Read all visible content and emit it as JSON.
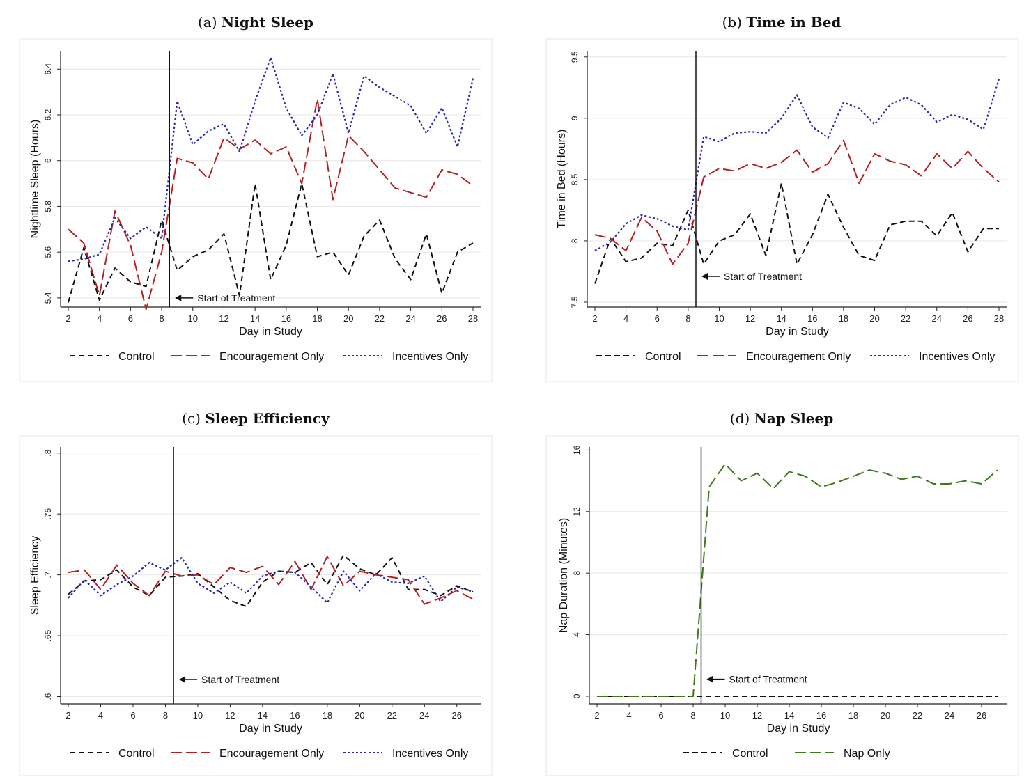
{
  "colors": {
    "control": "#111111",
    "encouragement": "#b22222",
    "incentives": "#2a2aa8",
    "nap": "#3d7a1e",
    "grid": "#e6e6e6",
    "frame": "#eeeeee"
  },
  "chart_data": [
    {
      "id": "a",
      "type": "line",
      "title_prefix": "(a)",
      "title": "Night Sleep",
      "xlabel": "Day in Study",
      "ylabel": "Nighttime Sleep (Hours)",
      "xlim": [
        2,
        28
      ],
      "ylim": [
        5.36,
        6.48
      ],
      "xticks": [
        2,
        4,
        6,
        8,
        10,
        12,
        14,
        16,
        18,
        20,
        22,
        24,
        26,
        28
      ],
      "yticks": [
        5.4,
        5.6,
        5.8,
        6,
        6.2,
        6.4
      ],
      "ytick_labels": [
        "5.4",
        "5.6",
        "5.8",
        "6",
        "6.2",
        "6.4"
      ],
      "treatment_x": 8.5,
      "annotation": "Start of Treatment",
      "annotation_y": 5.4,
      "x": [
        2,
        3,
        4,
        5,
        6,
        7,
        8,
        9,
        10,
        11,
        12,
        13,
        14,
        15,
        16,
        17,
        18,
        19,
        20,
        21,
        22,
        23,
        24,
        25,
        26,
        27,
        28
      ],
      "series": [
        {
          "name": "Control",
          "key": "control",
          "dash": "8,5",
          "values": [
            5.38,
            5.62,
            5.39,
            5.53,
            5.47,
            5.45,
            5.74,
            5.52,
            5.58,
            5.61,
            5.68,
            5.41,
            5.9,
            5.48,
            5.63,
            5.9,
            5.58,
            5.6,
            5.5,
            5.67,
            5.74,
            5.57,
            5.48,
            5.68,
            5.42,
            5.6,
            5.64
          ]
        },
        {
          "name": "Encouragement Only",
          "key": "encouragement",
          "dash": "16,6",
          "values": [
            5.7,
            5.64,
            5.41,
            5.78,
            5.63,
            5.35,
            5.6,
            6.01,
            5.99,
            5.92,
            6.1,
            6.05,
            6.09,
            6.03,
            6.06,
            5.9,
            6.27,
            5.83,
            6.11,
            6.04,
            5.96,
            5.88,
            5.86,
            5.84,
            5.96,
            5.94,
            5.89
          ]
        },
        {
          "name": "Incentives Only",
          "key": "incentives",
          "dash": "3,3",
          "values": [
            5.56,
            5.57,
            5.59,
            5.75,
            5.66,
            5.71,
            5.66,
            6.26,
            6.07,
            6.13,
            6.16,
            6.04,
            6.26,
            6.45,
            6.23,
            6.11,
            6.2,
            6.38,
            6.12,
            6.37,
            6.32,
            6.28,
            6.24,
            6.12,
            6.23,
            6.06,
            6.36
          ]
        }
      ],
      "legend": [
        "Control",
        "Encouragement Only",
        "Incentives Only"
      ]
    },
    {
      "id": "b",
      "type": "line",
      "title_prefix": "(b)",
      "title": "Time in Bed",
      "xlabel": "Day in Study",
      "ylabel": "Time in Bed (Hours)",
      "xlim": [
        2,
        28
      ],
      "ylim": [
        7.46,
        9.55
      ],
      "xticks": [
        2,
        4,
        6,
        8,
        10,
        12,
        14,
        16,
        18,
        20,
        22,
        24,
        26,
        28
      ],
      "yticks": [
        7.5,
        8,
        8.5,
        9,
        9.5
      ],
      "ytick_labels": [
        "7.5",
        "8",
        "8.5",
        "9",
        "9.5"
      ],
      "treatment_x": 8.5,
      "annotation": "Start of Treatment",
      "annotation_y": 7.71,
      "x": [
        2,
        3,
        4,
        5,
        6,
        7,
        8,
        9,
        10,
        11,
        12,
        13,
        14,
        15,
        16,
        17,
        18,
        19,
        20,
        21,
        22,
        23,
        24,
        25,
        26,
        27,
        28
      ],
      "series": [
        {
          "name": "Control",
          "key": "control",
          "dash": "8,5",
          "values": [
            7.65,
            8.02,
            7.83,
            7.86,
            7.98,
            7.96,
            8.25,
            7.81,
            8.0,
            8.05,
            8.22,
            7.88,
            8.47,
            7.81,
            8.05,
            8.38,
            8.11,
            7.88,
            7.84,
            8.13,
            8.16,
            8.16,
            8.04,
            8.23,
            7.91,
            8.1,
            8.1
          ]
        },
        {
          "name": "Encouragement Only",
          "key": "encouragement",
          "dash": "16,6",
          "values": [
            8.05,
            8.02,
            7.92,
            8.19,
            8.08,
            7.81,
            7.98,
            8.52,
            8.59,
            8.57,
            8.63,
            8.59,
            8.64,
            8.74,
            8.56,
            8.63,
            8.82,
            8.47,
            8.71,
            8.65,
            8.62,
            8.53,
            8.71,
            8.59,
            8.73,
            8.59,
            8.48
          ]
        },
        {
          "name": "Incentives Only",
          "key": "incentives",
          "dash": "3,3",
          "values": [
            7.92,
            7.99,
            8.14,
            8.21,
            8.18,
            8.12,
            8.09,
            8.85,
            8.81,
            8.88,
            8.89,
            8.88,
            9.0,
            9.19,
            8.93,
            8.84,
            9.13,
            9.08,
            8.95,
            9.11,
            9.17,
            9.11,
            8.97,
            9.03,
            8.99,
            8.91,
            9.32
          ]
        }
      ],
      "legend": [
        "Control",
        "Encouragement Only",
        "Incentives Only"
      ]
    },
    {
      "id": "c",
      "type": "line",
      "title_prefix": "(c)",
      "title": "Sleep Efficiency",
      "xlabel": "Day in Study",
      "ylabel": "Sleep Efficiency",
      "xlim": [
        2,
        27
      ],
      "ylim": [
        0.594,
        0.805
      ],
      "xticks": [
        2,
        4,
        6,
        8,
        10,
        12,
        14,
        16,
        18,
        20,
        22,
        24,
        26
      ],
      "yticks": [
        0.6,
        0.65,
        0.7,
        0.75,
        0.8
      ],
      "ytick_labels": [
        ".6",
        ".65",
        ".7",
        ".75",
        ".8"
      ],
      "treatment_x": 8.5,
      "annotation": "Start of Treatment",
      "annotation_y": 0.614,
      "x": [
        2,
        3,
        4,
        5,
        6,
        7,
        8,
        9,
        10,
        11,
        12,
        13,
        14,
        15,
        16,
        17,
        18,
        19,
        20,
        21,
        22,
        23,
        24,
        25,
        26,
        27
      ],
      "series": [
        {
          "name": "Control",
          "key": "control",
          "dash": "8,5",
          "values": [
            0.684,
            0.695,
            0.696,
            0.704,
            0.69,
            0.683,
            0.698,
            0.699,
            0.701,
            0.69,
            0.679,
            0.674,
            0.694,
            0.703,
            0.702,
            0.71,
            0.692,
            0.716,
            0.705,
            0.7,
            0.714,
            0.688,
            0.688,
            0.683,
            0.691,
            0.686
          ]
        },
        {
          "name": "Encouragement Only",
          "key": "encouragement",
          "dash": "16,6",
          "values": [
            0.702,
            0.704,
            0.688,
            0.708,
            0.693,
            0.683,
            0.703,
            0.699,
            0.7,
            0.692,
            0.706,
            0.702,
            0.707,
            0.692,
            0.711,
            0.688,
            0.715,
            0.691,
            0.703,
            0.7,
            0.698,
            0.696,
            0.676,
            0.681,
            0.687,
            0.68
          ]
        },
        {
          "name": "Incentives Only",
          "key": "incentives",
          "dash": "3,3",
          "values": [
            0.681,
            0.696,
            0.683,
            0.692,
            0.699,
            0.71,
            0.704,
            0.714,
            0.693,
            0.685,
            0.694,
            0.685,
            0.699,
            0.703,
            0.702,
            0.69,
            0.677,
            0.703,
            0.687,
            0.701,
            0.694,
            0.693,
            0.699,
            0.678,
            0.69,
            0.686
          ]
        }
      ],
      "legend": [
        "Control",
        "Encouragement Only",
        "Incentives Only"
      ]
    },
    {
      "id": "d",
      "type": "line",
      "title_prefix": "(d)",
      "title": "Nap Sleep",
      "xlabel": "Day in Study",
      "ylabel": "Nap Duration (Minutes)",
      "xlim": [
        2,
        27
      ],
      "ylim": [
        -0.5,
        16.2
      ],
      "xticks": [
        2,
        4,
        6,
        8,
        10,
        12,
        14,
        16,
        18,
        20,
        22,
        24,
        26
      ],
      "yticks": [
        0,
        4,
        8,
        12,
        16
      ],
      "ytick_labels": [
        "0",
        "4",
        "8",
        "12",
        "16"
      ],
      "treatment_x": 8.5,
      "annotation": "Start of Treatment",
      "annotation_y": 1.1,
      "x": [
        2,
        3,
        4,
        5,
        6,
        7,
        8,
        9,
        10,
        11,
        12,
        13,
        14,
        15,
        16,
        17,
        18,
        19,
        20,
        21,
        22,
        23,
        24,
        25,
        26,
        27
      ],
      "series": [
        {
          "name": "Control",
          "key": "control",
          "dash": "8,5",
          "values": [
            0,
            0,
            0,
            0,
            0,
            0,
            0,
            0,
            0,
            0,
            0,
            0,
            0,
            0,
            0,
            0,
            0,
            0,
            0,
            0,
            0,
            0,
            0,
            0,
            0,
            0
          ]
        },
        {
          "name": "Nap Only",
          "key": "nap",
          "dash": "16,6",
          "values": [
            0,
            0,
            0,
            0,
            0,
            0,
            0,
            13.6,
            15.1,
            14.0,
            14.5,
            13.5,
            14.6,
            14.3,
            13.6,
            13.9,
            14.3,
            14.7,
            14.5,
            14.1,
            14.3,
            13.8,
            13.8,
            14.0,
            13.8,
            14.7
          ]
        }
      ],
      "legend": [
        "Control",
        "Nap Only"
      ]
    }
  ]
}
